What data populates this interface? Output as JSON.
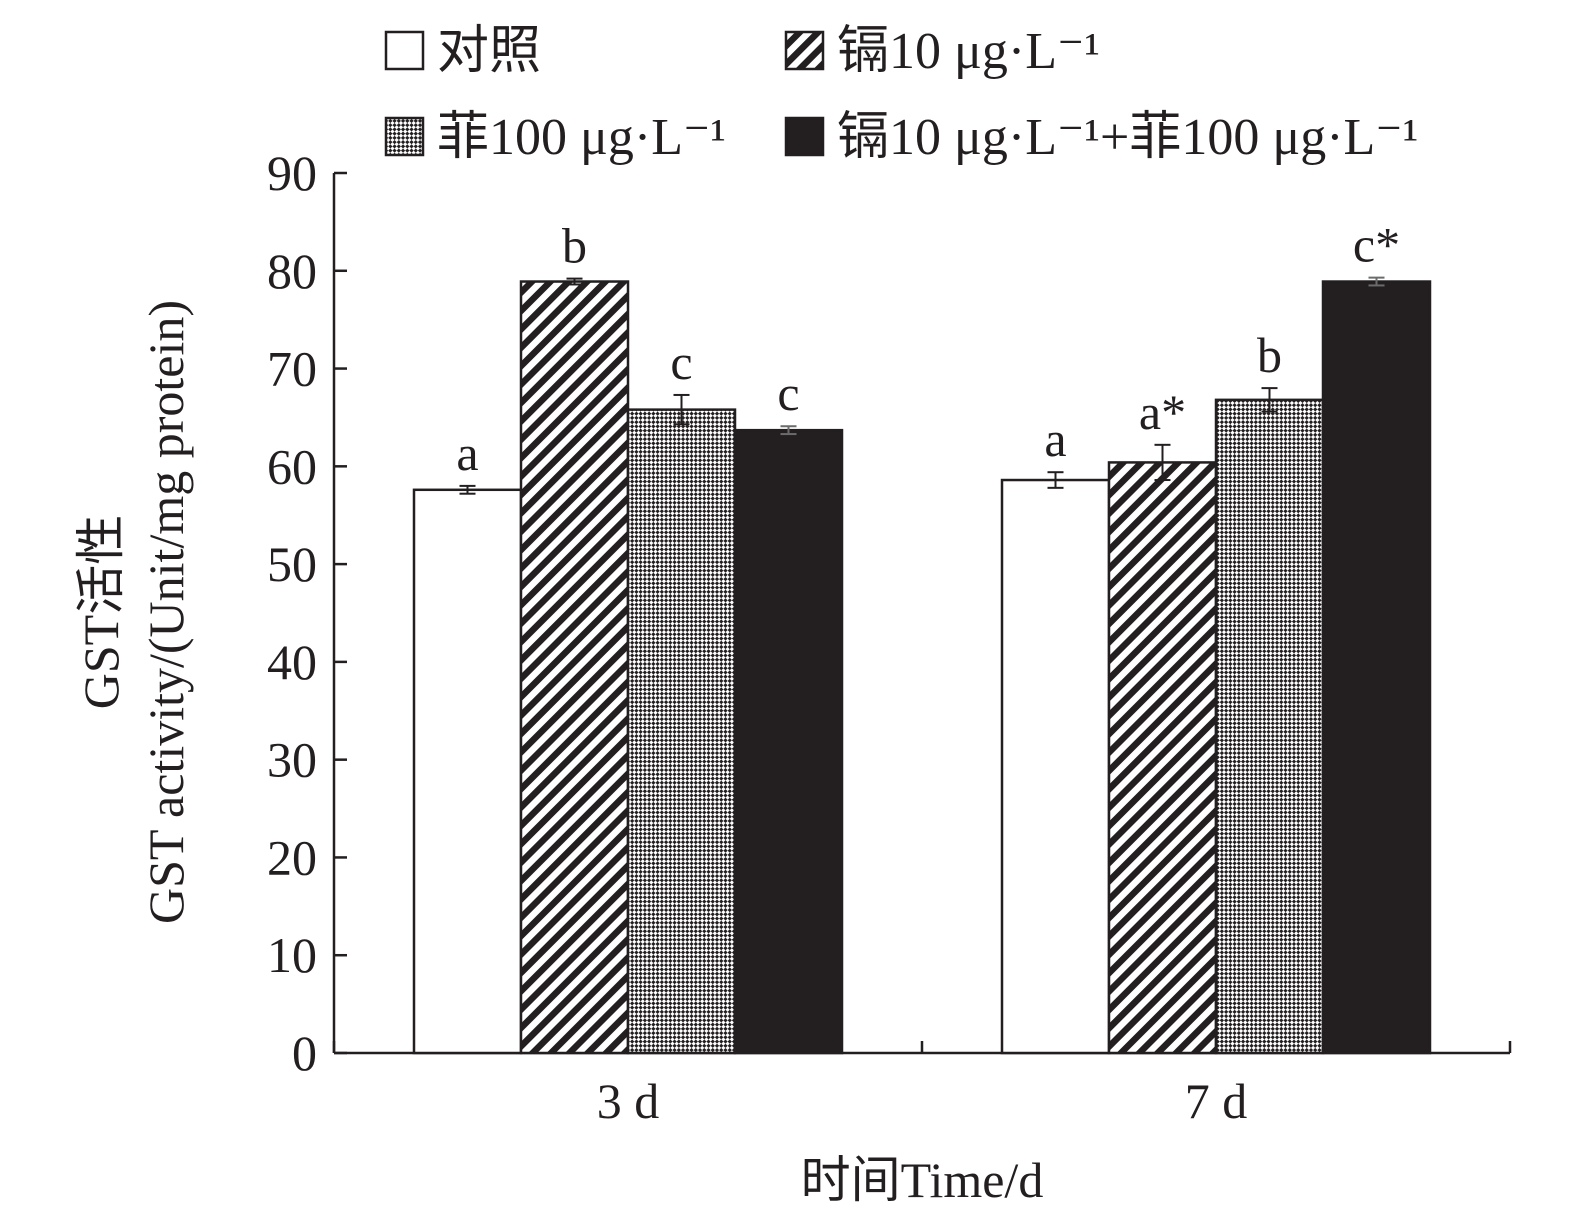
{
  "chart_data": {
    "type": "bar",
    "categories": [
      "3 d",
      "7 d"
    ],
    "series": [
      {
        "name": "对照",
        "pattern": "solid-white",
        "values": [
          57.6,
          58.6
        ],
        "errors": [
          0.4,
          0.8
        ],
        "labels": [
          "a",
          "a"
        ]
      },
      {
        "name": "镉10 μg·L⁻¹",
        "pattern": "diagonal-stripe",
        "values": [
          78.9,
          60.4
        ],
        "errors": [
          0.3,
          1.8
        ],
        "labels": [
          "b",
          "a*"
        ]
      },
      {
        "name": "菲100 μg·L⁻¹",
        "pattern": "checker-stripe",
        "values": [
          65.8,
          66.8
        ],
        "errors": [
          1.5,
          1.2
        ],
        "labels": [
          "c",
          "b"
        ]
      },
      {
        "name": "镉10 μg·L⁻¹+菲100 μg·L⁻¹",
        "pattern": "solid-black",
        "values": [
          63.7,
          78.9
        ],
        "errors": [
          0.4,
          0.4
        ],
        "labels": [
          "c",
          "c*"
        ]
      }
    ],
    "ylim": [
      0,
      90
    ],
    "yticks": [
      "0",
      "10",
      "20",
      "30",
      "40",
      "50",
      "60",
      "70",
      "80",
      "90"
    ],
    "ytick_values": [
      0,
      10,
      20,
      30,
      40,
      50,
      60,
      70,
      80,
      90
    ],
    "ylabel_line1": "GST活性",
    "ylabel_line2": "GST activity/(Unit/mg protein)",
    "xlabel": "时间Time/d",
    "legend_position": "top",
    "grid": false,
    "colors": {
      "ink": "#231f20",
      "fill_white": "#ffffff",
      "fill_black": "#231f20"
    }
  }
}
